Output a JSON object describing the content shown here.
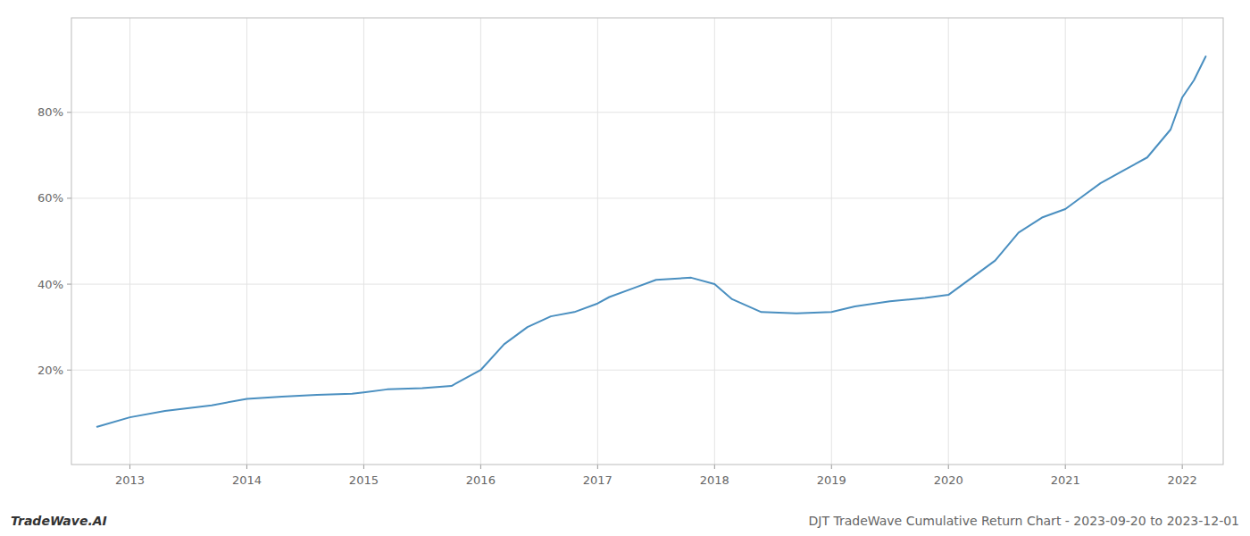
{
  "chart_data": {
    "type": "line",
    "title": "DJT TradeWave Cumulative Return Chart - 2023-09-20 to 2023-12-01",
    "annotations": [
      "TradeWave.AI"
    ],
    "x": [
      2012.72,
      2013.0,
      2013.3,
      2013.7,
      2014.0,
      2014.3,
      2014.6,
      2014.9,
      2015.0,
      2015.2,
      2015.5,
      2015.75,
      2016.0,
      2016.2,
      2016.4,
      2016.6,
      2016.8,
      2017.0,
      2017.1,
      2017.3,
      2017.5,
      2017.8,
      2018.0,
      2018.15,
      2018.4,
      2018.7,
      2019.0,
      2019.2,
      2019.5,
      2019.8,
      2020.0,
      2020.2,
      2020.4,
      2020.6,
      2020.8,
      2021.0,
      2021.15,
      2021.3,
      2021.5,
      2021.7,
      2021.9,
      2022.0,
      2022.1,
      2022.2
    ],
    "values": [
      0.068,
      0.09,
      0.105,
      0.118,
      0.133,
      0.138,
      0.142,
      0.145,
      0.148,
      0.155,
      0.158,
      0.163,
      0.2,
      0.26,
      0.3,
      0.325,
      0.335,
      0.355,
      0.37,
      0.39,
      0.41,
      0.415,
      0.4,
      0.365,
      0.335,
      0.332,
      0.335,
      0.348,
      0.36,
      0.368,
      0.375,
      0.415,
      0.455,
      0.52,
      0.555,
      0.575,
      0.605,
      0.635,
      0.665,
      0.695,
      0.76,
      0.835,
      0.875,
      0.93
    ],
    "color": "#4a8fc0",
    "xlim": [
      2012.5,
      2022.35
    ],
    "ylim": [
      -0.02,
      1.02
    ],
    "xticks": [
      2013,
      2014,
      2015,
      2016,
      2017,
      2018,
      2019,
      2020,
      2021,
      2022
    ],
    "yticks": [
      {
        "value": 0.2,
        "label": "20%"
      },
      {
        "value": 0.4,
        "label": "40%"
      },
      {
        "value": 0.6,
        "label": "60%"
      },
      {
        "value": 0.8,
        "label": "80%"
      }
    ],
    "grid": true
  }
}
